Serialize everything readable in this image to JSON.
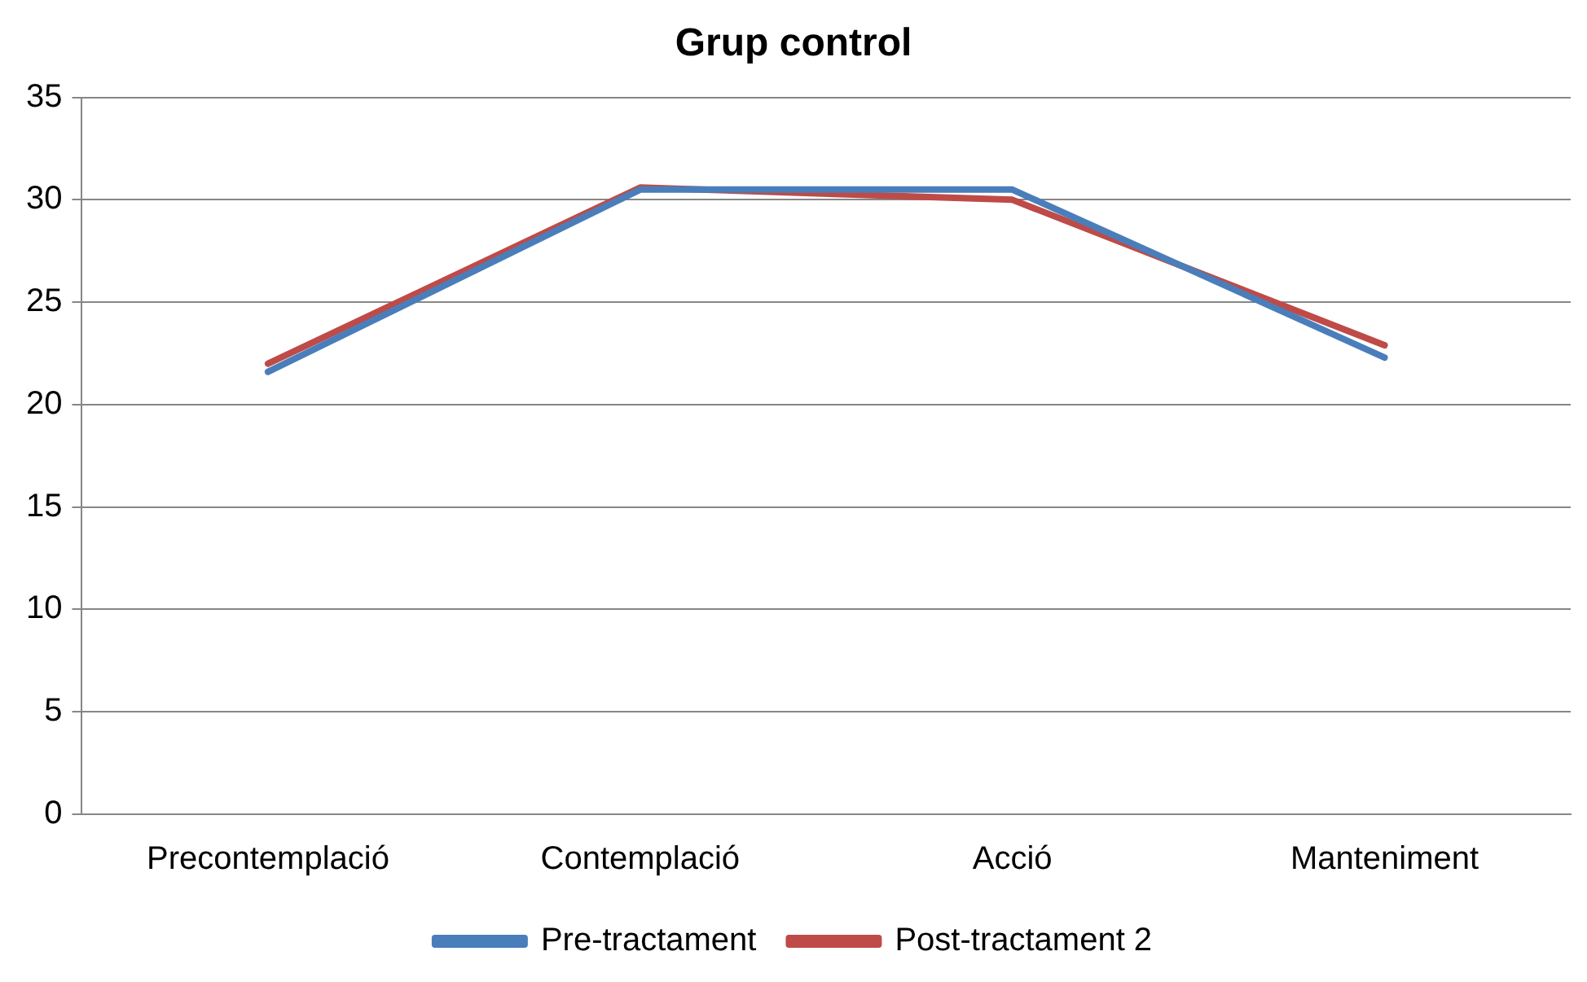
{
  "chart_data": {
    "type": "line",
    "title": "Grup control",
    "categories": [
      "Precontemplació",
      "Contemplació",
      "Acció",
      "Manteniment"
    ],
    "series": [
      {
        "name": "Pre-tractament",
        "color": "#4a7ebb",
        "values": [
          21.6,
          30.5,
          30.5,
          22.3
        ]
      },
      {
        "name": "Post-tractament 2",
        "color": "#be4b48",
        "values": [
          22.0,
          30.6,
          30.0,
          22.9
        ]
      }
    ],
    "ylim": [
      0,
      35
    ],
    "yticks": [
      0,
      5,
      10,
      15,
      20,
      25,
      30,
      35
    ],
    "grid": "y",
    "legend": "bottom",
    "marker": "none",
    "line_style": "solid"
  }
}
